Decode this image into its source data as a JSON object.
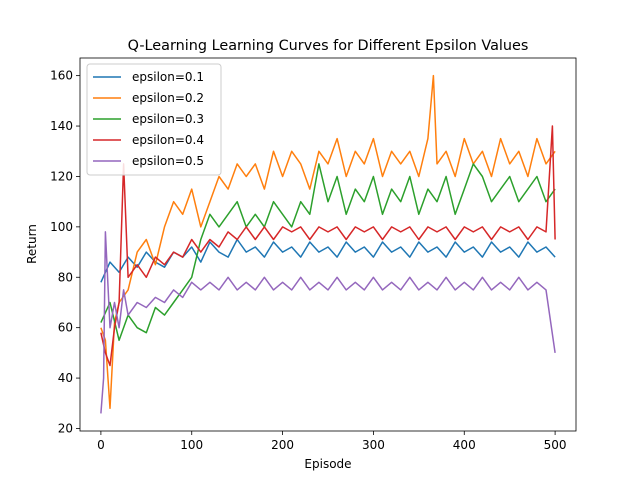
{
  "chart_data": {
    "type": "line",
    "title": "Q-Learning Learning Curves for Different Epsilon Values",
    "xlabel": "Episode",
    "ylabel": "Return",
    "xlim": [
      -23,
      523
    ],
    "ylim": [
      19,
      167
    ],
    "xticks": [
      0,
      100,
      200,
      300,
      400,
      500
    ],
    "yticks": [
      20,
      40,
      60,
      80,
      100,
      120,
      140,
      160
    ],
    "grid": false,
    "legend_position": "top-left",
    "series": [
      {
        "name": "epsilon=0.1",
        "color": "#1f77b4",
        "points": [
          [
            0,
            78
          ],
          [
            10,
            86
          ],
          [
            20,
            82
          ],
          [
            30,
            88
          ],
          [
            40,
            84
          ],
          [
            50,
            90
          ],
          [
            60,
            86
          ],
          [
            70,
            84
          ],
          [
            80,
            90
          ],
          [
            90,
            88
          ],
          [
            100,
            92
          ],
          [
            110,
            86
          ],
          [
            120,
            94
          ],
          [
            130,
            90
          ],
          [
            140,
            88
          ],
          [
            150,
            95
          ],
          [
            160,
            90
          ],
          [
            170,
            92
          ],
          [
            180,
            88
          ],
          [
            190,
            94
          ],
          [
            200,
            90
          ],
          [
            210,
            92
          ],
          [
            220,
            88
          ],
          [
            230,
            94
          ],
          [
            240,
            90
          ],
          [
            250,
            92
          ],
          [
            260,
            88
          ],
          [
            270,
            94
          ],
          [
            280,
            90
          ],
          [
            290,
            92
          ],
          [
            300,
            88
          ],
          [
            310,
            94
          ],
          [
            320,
            90
          ],
          [
            330,
            92
          ],
          [
            340,
            88
          ],
          [
            350,
            94
          ],
          [
            360,
            90
          ],
          [
            370,
            92
          ],
          [
            380,
            88
          ],
          [
            390,
            94
          ],
          [
            400,
            90
          ],
          [
            410,
            92
          ],
          [
            420,
            88
          ],
          [
            430,
            94
          ],
          [
            440,
            90
          ],
          [
            450,
            92
          ],
          [
            460,
            88
          ],
          [
            470,
            94
          ],
          [
            480,
            90
          ],
          [
            490,
            92
          ],
          [
            500,
            88
          ]
        ]
      },
      {
        "name": "epsilon=0.2",
        "color": "#ff7f0e",
        "points": [
          [
            0,
            60
          ],
          [
            5,
            55
          ],
          [
            10,
            28
          ],
          [
            15,
            62
          ],
          [
            20,
            70
          ],
          [
            30,
            75
          ],
          [
            40,
            90
          ],
          [
            50,
            95
          ],
          [
            60,
            85
          ],
          [
            70,
            100
          ],
          [
            80,
            110
          ],
          [
            90,
            105
          ],
          [
            100,
            115
          ],
          [
            110,
            100
          ],
          [
            120,
            110
          ],
          [
            130,
            120
          ],
          [
            140,
            115
          ],
          [
            150,
            125
          ],
          [
            160,
            120
          ],
          [
            170,
            125
          ],
          [
            180,
            115
          ],
          [
            190,
            130
          ],
          [
            200,
            120
          ],
          [
            210,
            130
          ],
          [
            220,
            125
          ],
          [
            230,
            115
          ],
          [
            240,
            130
          ],
          [
            250,
            125
          ],
          [
            260,
            135
          ],
          [
            270,
            120
          ],
          [
            280,
            130
          ],
          [
            290,
            125
          ],
          [
            300,
            135
          ],
          [
            310,
            120
          ],
          [
            320,
            130
          ],
          [
            330,
            125
          ],
          [
            340,
            130
          ],
          [
            350,
            120
          ],
          [
            360,
            135
          ],
          [
            366,
            160
          ],
          [
            370,
            125
          ],
          [
            380,
            130
          ],
          [
            390,
            120
          ],
          [
            400,
            135
          ],
          [
            410,
            125
          ],
          [
            420,
            130
          ],
          [
            430,
            120
          ],
          [
            440,
            135
          ],
          [
            450,
            125
          ],
          [
            460,
            130
          ],
          [
            470,
            120
          ],
          [
            480,
            135
          ],
          [
            490,
            125
          ],
          [
            500,
            130
          ]
        ]
      },
      {
        "name": "epsilon=0.3",
        "color": "#2ca02c",
        "points": [
          [
            0,
            62
          ],
          [
            10,
            70
          ],
          [
            20,
            55
          ],
          [
            30,
            65
          ],
          [
            40,
            60
          ],
          [
            50,
            58
          ],
          [
            60,
            68
          ],
          [
            70,
            65
          ],
          [
            80,
            70
          ],
          [
            90,
            75
          ],
          [
            100,
            80
          ],
          [
            110,
            95
          ],
          [
            120,
            105
          ],
          [
            130,
            100
          ],
          [
            140,
            105
          ],
          [
            150,
            110
          ],
          [
            160,
            100
          ],
          [
            170,
            105
          ],
          [
            180,
            100
          ],
          [
            190,
            110
          ],
          [
            200,
            105
          ],
          [
            210,
            100
          ],
          [
            220,
            110
          ],
          [
            230,
            105
          ],
          [
            240,
            125
          ],
          [
            250,
            110
          ],
          [
            260,
            120
          ],
          [
            270,
            105
          ],
          [
            280,
            115
          ],
          [
            290,
            110
          ],
          [
            300,
            120
          ],
          [
            310,
            105
          ],
          [
            320,
            115
          ],
          [
            330,
            110
          ],
          [
            340,
            120
          ],
          [
            350,
            105
          ],
          [
            360,
            115
          ],
          [
            370,
            110
          ],
          [
            380,
            120
          ],
          [
            390,
            105
          ],
          [
            400,
            115
          ],
          [
            410,
            125
          ],
          [
            420,
            120
          ],
          [
            430,
            110
          ],
          [
            440,
            115
          ],
          [
            450,
            120
          ],
          [
            460,
            110
          ],
          [
            470,
            115
          ],
          [
            480,
            120
          ],
          [
            490,
            110
          ],
          [
            500,
            115
          ]
        ]
      },
      {
        "name": "epsilon=0.4",
        "color": "#d62728",
        "points": [
          [
            0,
            58
          ],
          [
            5,
            50
          ],
          [
            10,
            45
          ],
          [
            15,
            60
          ],
          [
            20,
            70
          ],
          [
            25,
            125
          ],
          [
            30,
            80
          ],
          [
            40,
            85
          ],
          [
            50,
            80
          ],
          [
            60,
            88
          ],
          [
            70,
            85
          ],
          [
            80,
            90
          ],
          [
            90,
            88
          ],
          [
            100,
            95
          ],
          [
            110,
            90
          ],
          [
            120,
            95
          ],
          [
            130,
            92
          ],
          [
            140,
            98
          ],
          [
            150,
            95
          ],
          [
            160,
            100
          ],
          [
            170,
            95
          ],
          [
            180,
            100
          ],
          [
            190,
            95
          ],
          [
            200,
            100
          ],
          [
            210,
            98
          ],
          [
            220,
            100
          ],
          [
            230,
            95
          ],
          [
            240,
            100
          ],
          [
            250,
            98
          ],
          [
            260,
            100
          ],
          [
            270,
            95
          ],
          [
            280,
            100
          ],
          [
            290,
            98
          ],
          [
            300,
            100
          ],
          [
            310,
            95
          ],
          [
            320,
            100
          ],
          [
            330,
            98
          ],
          [
            340,
            100
          ],
          [
            350,
            95
          ],
          [
            360,
            100
          ],
          [
            370,
            98
          ],
          [
            380,
            100
          ],
          [
            390,
            95
          ],
          [
            400,
            100
          ],
          [
            410,
            98
          ],
          [
            420,
            100
          ],
          [
            430,
            95
          ],
          [
            440,
            100
          ],
          [
            450,
            98
          ],
          [
            460,
            100
          ],
          [
            470,
            95
          ],
          [
            480,
            100
          ],
          [
            490,
            98
          ],
          [
            497,
            140
          ],
          [
            500,
            95
          ]
        ]
      },
      {
        "name": "epsilon=0.5",
        "color": "#9467bd",
        "points": [
          [
            0,
            26
          ],
          [
            3,
            40
          ],
          [
            5,
            98
          ],
          [
            10,
            60
          ],
          [
            15,
            70
          ],
          [
            20,
            60
          ],
          [
            25,
            75
          ],
          [
            30,
            65
          ],
          [
            40,
            70
          ],
          [
            50,
            68
          ],
          [
            60,
            72
          ],
          [
            70,
            70
          ],
          [
            80,
            75
          ],
          [
            90,
            72
          ],
          [
            100,
            78
          ],
          [
            110,
            75
          ],
          [
            120,
            78
          ],
          [
            130,
            75
          ],
          [
            140,
            80
          ],
          [
            150,
            75
          ],
          [
            160,
            78
          ],
          [
            170,
            75
          ],
          [
            180,
            80
          ],
          [
            190,
            75
          ],
          [
            200,
            78
          ],
          [
            210,
            75
          ],
          [
            220,
            80
          ],
          [
            230,
            75
          ],
          [
            240,
            78
          ],
          [
            250,
            75
          ],
          [
            260,
            80
          ],
          [
            270,
            75
          ],
          [
            280,
            78
          ],
          [
            290,
            75
          ],
          [
            300,
            80
          ],
          [
            310,
            75
          ],
          [
            320,
            78
          ],
          [
            330,
            75
          ],
          [
            340,
            80
          ],
          [
            350,
            75
          ],
          [
            360,
            78
          ],
          [
            370,
            75
          ],
          [
            380,
            80
          ],
          [
            390,
            75
          ],
          [
            400,
            78
          ],
          [
            410,
            75
          ],
          [
            420,
            80
          ],
          [
            430,
            75
          ],
          [
            440,
            78
          ],
          [
            450,
            75
          ],
          [
            460,
            80
          ],
          [
            470,
            75
          ],
          [
            480,
            78
          ],
          [
            490,
            75
          ],
          [
            500,
            50
          ]
        ]
      }
    ]
  }
}
